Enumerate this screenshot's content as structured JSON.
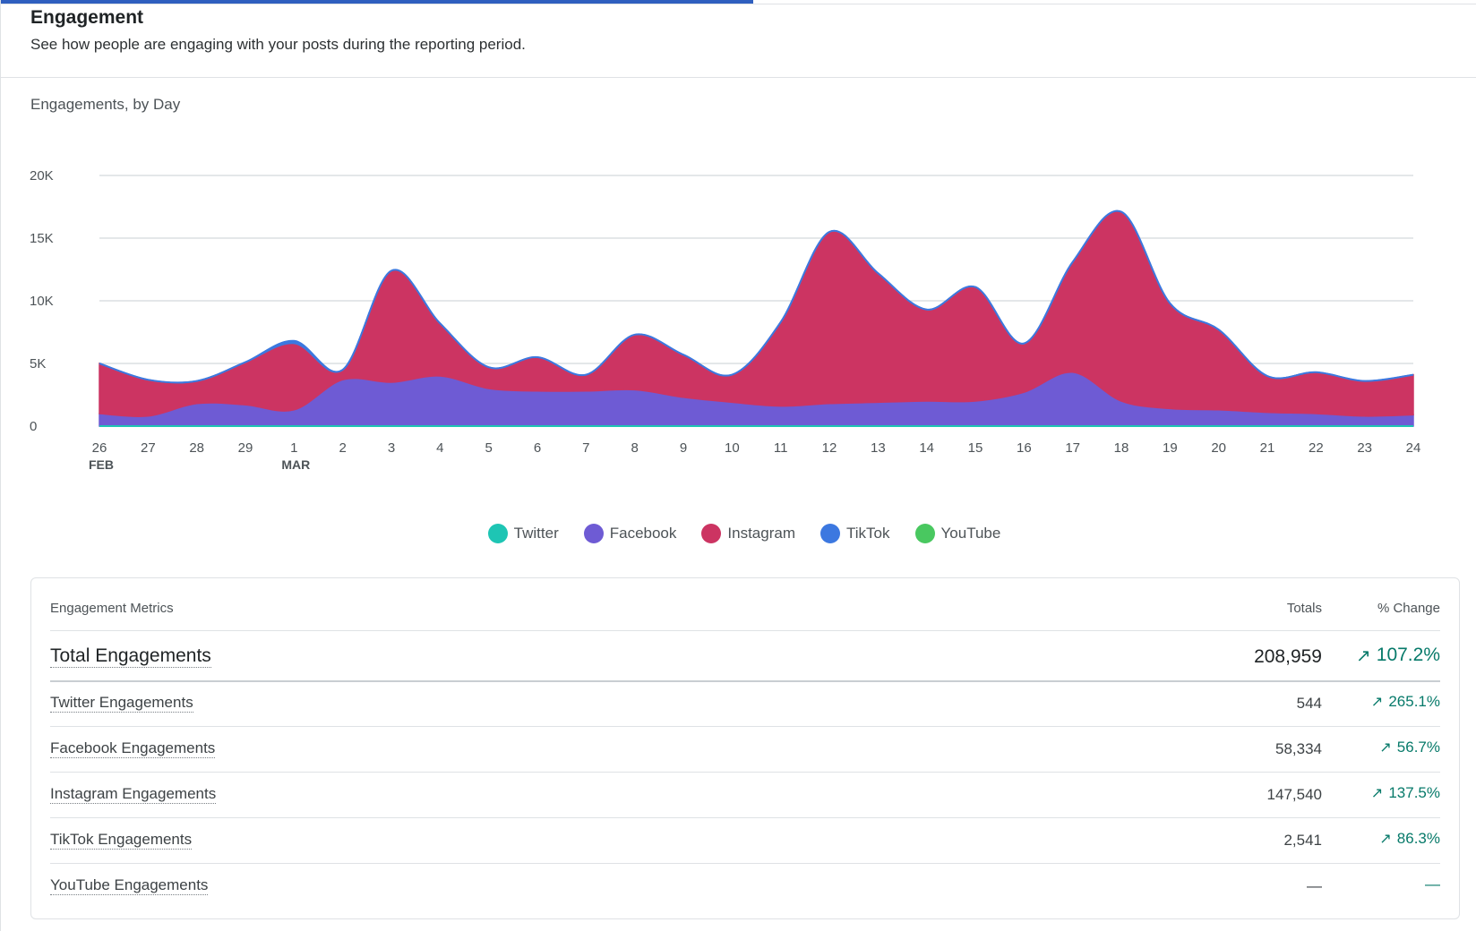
{
  "header": {
    "title": "Engagement",
    "subtitle": "See how people are engaging with your posts during the reporting period.",
    "progress": 0.51
  },
  "chart_title": "Engagements, by Day",
  "chart_data": {
    "type": "area",
    "title": "Engagements, by Day",
    "stacked": true,
    "x": [
      "Feb 26",
      "Feb 27",
      "Feb 28",
      "Feb 29",
      "Mar 1",
      "Mar 2",
      "Mar 3",
      "Mar 4",
      "Mar 5",
      "Mar 6",
      "Mar 7",
      "Mar 8",
      "Mar 9",
      "Mar 10",
      "Mar 11",
      "Mar 12",
      "Mar 13",
      "Mar 14",
      "Mar 15",
      "Mar 16",
      "Mar 17",
      "Mar 18",
      "Mar 19",
      "Mar 20",
      "Mar 21",
      "Mar 22",
      "Mar 23",
      "Mar 24"
    ],
    "tick_labels": [
      "26",
      "27",
      "28",
      "29",
      "1",
      "2",
      "3",
      "4",
      "5",
      "6",
      "7",
      "8",
      "9",
      "10",
      "11",
      "12",
      "13",
      "14",
      "15",
      "16",
      "17",
      "18",
      "19",
      "20",
      "21",
      "22",
      "23",
      "24"
    ],
    "month_labels": [
      {
        "index": 0,
        "label": "FEB"
      },
      {
        "index": 4,
        "label": "MAR"
      }
    ],
    "yticks": [
      0,
      5000,
      10000,
      15000,
      20000
    ],
    "ytick_labels": [
      "0",
      "5K",
      "10K",
      "15K",
      "20K"
    ],
    "ylim": [
      0,
      20000
    ],
    "grid": true,
    "legend_position": "bottom-center",
    "series": [
      {
        "name": "Twitter",
        "color": "#1ec5b4",
        "values": [
          0,
          0,
          0,
          0,
          0,
          0,
          0,
          0,
          0,
          0,
          0,
          0,
          0,
          0,
          0,
          0,
          0,
          0,
          0,
          0,
          0,
          0,
          0,
          0,
          0,
          0,
          0,
          0
        ]
      },
      {
        "name": "Facebook",
        "color": "#6e5bd4",
        "values": [
          1000,
          800,
          1800,
          1700,
          1300,
          3700,
          3500,
          4000,
          3000,
          2800,
          2800,
          2900,
          2300,
          1900,
          1600,
          1800,
          1900,
          2000,
          2000,
          2700,
          4300,
          2000,
          1400,
          1300,
          1100,
          1000,
          800,
          900
        ]
      },
      {
        "name": "Instagram",
        "color": "#cc3462",
        "values": [
          4000,
          2900,
          1800,
          3400,
          5300,
          800,
          8900,
          4200,
          1700,
          2700,
          1300,
          4400,
          3400,
          2200,
          6700,
          13700,
          10300,
          7300,
          9100,
          3900,
          8800,
          15100,
          8400,
          6400,
          2900,
          3300,
          2800,
          3200
        ]
      },
      {
        "name": "TikTok",
        "color": "#3c78e0",
        "values": [
          0,
          0,
          0,
          0,
          200,
          0,
          0,
          0,
          0,
          0,
          0,
          0,
          0,
          0,
          0,
          0,
          0,
          0,
          0,
          0,
          0,
          0,
          0,
          0,
          0,
          0,
          0,
          0
        ]
      },
      {
        "name": "YouTube",
        "color": "#49c860",
        "values": [
          0,
          0,
          0,
          0,
          0,
          0,
          0,
          0,
          0,
          0,
          0,
          0,
          0,
          0,
          0,
          0,
          0,
          0,
          0,
          0,
          0,
          0,
          0,
          0,
          0,
          0,
          0,
          0
        ]
      }
    ]
  },
  "legend": [
    {
      "label": "Twitter",
      "color": "#1ec5b4"
    },
    {
      "label": "Facebook",
      "color": "#6e5bd4"
    },
    {
      "label": "Instagram",
      "color": "#cc3462"
    },
    {
      "label": "TikTok",
      "color": "#3c78e0"
    },
    {
      "label": "YouTube",
      "color": "#49c860"
    }
  ],
  "table": {
    "headers": {
      "metric": "Engagement Metrics",
      "totals": "Totals",
      "change": "% Change"
    },
    "arrow_glyph": "↗",
    "rows": [
      {
        "metric": "Total Engagements",
        "total": "208,959",
        "change": "107.2%",
        "up": true
      },
      {
        "metric": "Twitter Engagements",
        "total": "544",
        "change": "265.1%",
        "up": true
      },
      {
        "metric": "Facebook Engagements",
        "total": "58,334",
        "change": "56.7%",
        "up": true
      },
      {
        "metric": "Instagram Engagements",
        "total": "147,540",
        "change": "137.5%",
        "up": true
      },
      {
        "metric": "TikTok Engagements",
        "total": "2,541",
        "change": "86.3%",
        "up": true
      },
      {
        "metric": "YouTube Engagements",
        "total": "—",
        "change": "—",
        "up": false
      }
    ]
  }
}
